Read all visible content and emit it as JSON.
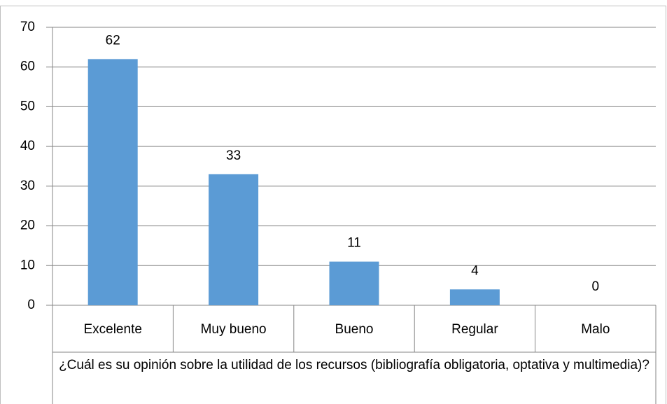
{
  "chart_data": {
    "type": "bar",
    "x_label": "¿Cuál es su opinión sobre la utilidad de los recursos (bibliografía obligatoria, optativa y multimedia)?",
    "categories": [
      "Excelente",
      "Muy bueno",
      "Bueno",
      "Regular",
      "Malo"
    ],
    "values": [
      62,
      33,
      11,
      4,
      0
    ],
    "color": "#5b9bd5",
    "ylim": [
      0,
      70
    ],
    "yticks": [
      0,
      10,
      20,
      30,
      40,
      50,
      60,
      70
    ],
    "grid": true
  }
}
